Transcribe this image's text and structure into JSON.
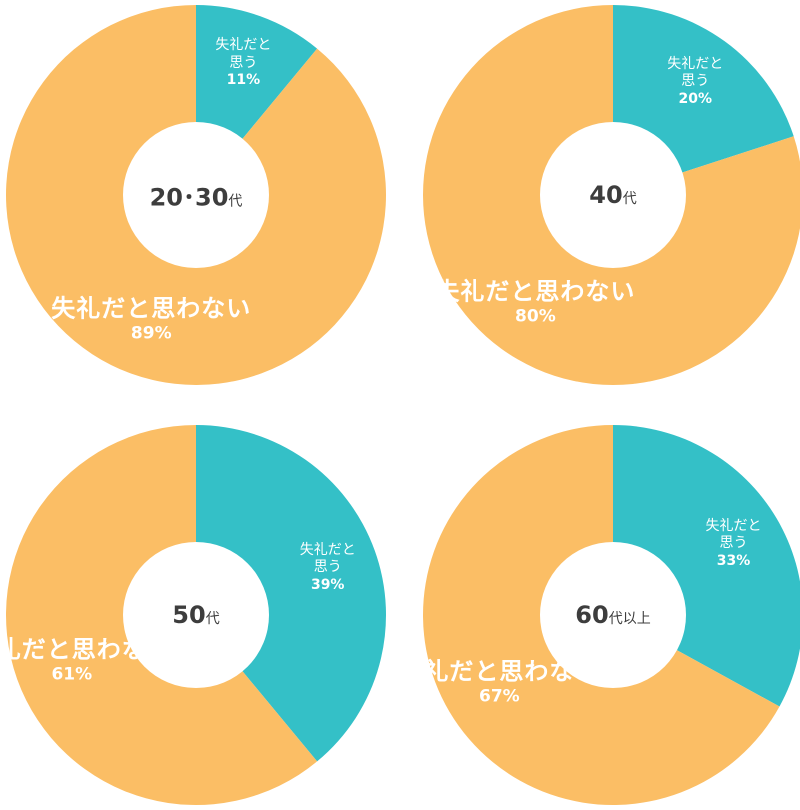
{
  "colors": {
    "think_rude": "#34c0c7",
    "not_think_rude": "#fbbe65",
    "center": "#ffffff",
    "center_text": "#3d3d3d"
  },
  "chart_data": [
    {
      "type": "pie",
      "center_label": {
        "number": "20･30",
        "suffix": "代"
      },
      "slices": [
        {
          "label_lines": [
            "失礼だと",
            "思う"
          ],
          "value": 11,
          "value_text": "11%",
          "color": "#34c0c7"
        },
        {
          "label_lines": [
            "失礼だと思わない"
          ],
          "value": 89,
          "value_text": "89%",
          "color": "#fbbe65"
        }
      ]
    },
    {
      "type": "pie",
      "center_label": {
        "number": "40",
        "suffix": "代"
      },
      "slices": [
        {
          "label_lines": [
            "失礼だと",
            "思う"
          ],
          "value": 20,
          "value_text": "20%",
          "color": "#34c0c7"
        },
        {
          "label_lines": [
            "失礼だと思わない"
          ],
          "value": 80,
          "value_text": "80%",
          "color": "#fbbe65"
        }
      ]
    },
    {
      "type": "pie",
      "center_label": {
        "number": "50",
        "suffix": "代"
      },
      "slices": [
        {
          "label_lines": [
            "失礼だと",
            "思う"
          ],
          "value": 39,
          "value_text": "39%",
          "color": "#34c0c7"
        },
        {
          "label_lines": [
            "失礼だと思わない"
          ],
          "value": 61,
          "value_text": "61%",
          "color": "#fbbe65"
        }
      ]
    },
    {
      "type": "pie",
      "center_label": {
        "number": "60",
        "suffix": "代以上"
      },
      "slices": [
        {
          "label_lines": [
            "失礼だと",
            "思う"
          ],
          "value": 33,
          "value_text": "33%",
          "color": "#34c0c7"
        },
        {
          "label_lines": [
            "失礼だと思わない"
          ],
          "value": 67,
          "value_text": "67%",
          "color": "#fbbe65"
        }
      ]
    }
  ]
}
